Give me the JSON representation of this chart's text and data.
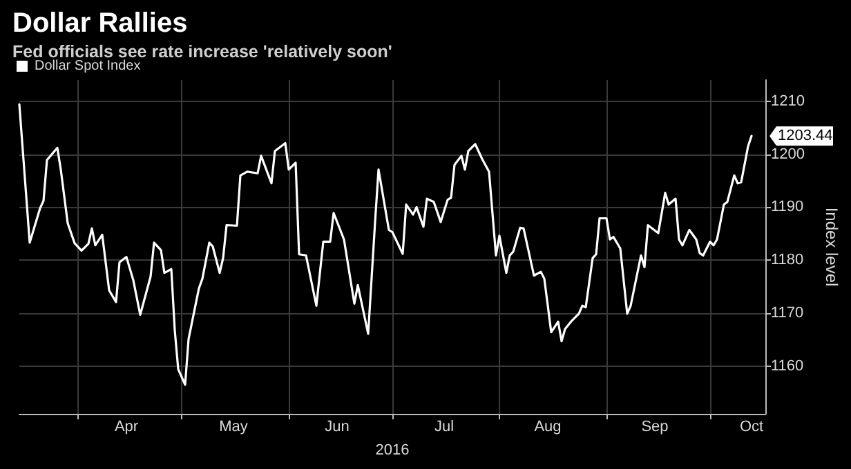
{
  "chart_data": {
    "type": "line",
    "title": "Dollar Rallies",
    "subtitle": "Fed officials see rate increase 'relatively soon'",
    "xlabel": "2016",
    "ylabel": "Index level",
    "annotations": [
      {
        "text": "1203.44",
        "x": "2016-10-13",
        "y": 1203.44
      }
    ],
    "x": [
      "2016-03-15",
      "2016-03-18",
      "2016-03-21",
      "2016-03-22",
      "2016-03-23",
      "2016-03-26",
      "2016-03-27",
      "2016-03-29",
      "2016-03-31",
      "2016-04-02",
      "2016-04-04",
      "2016-04-05",
      "2016-04-06",
      "2016-04-08",
      "2016-04-10",
      "2016-04-12",
      "2016-04-13",
      "2016-04-15",
      "2016-04-17",
      "2016-04-19",
      "2016-04-22",
      "2016-04-23",
      "2016-04-25",
      "2016-04-26",
      "2016-04-28",
      "2016-04-29",
      "2016-04-30",
      "2016-05-02",
      "2016-05-03",
      "2016-05-06",
      "2016-05-07",
      "2016-05-09",
      "2016-05-10",
      "2016-05-12",
      "2016-05-13",
      "2016-05-14",
      "2016-05-17",
      "2016-05-18",
      "2016-05-20",
      "2016-05-23",
      "2016-05-24",
      "2016-05-27",
      "2016-05-28",
      "2016-05-31",
      "2016-06-01",
      "2016-06-03",
      "2016-06-04",
      "2016-06-06",
      "2016-06-09",
      "2016-06-11",
      "2016-06-13",
      "2016-06-14",
      "2016-06-17",
      "2016-06-20",
      "2016-06-21",
      "2016-06-24",
      "2016-06-26",
      "2016-06-27",
      "2016-06-30",
      "2016-07-01",
      "2016-07-04",
      "2016-07-05",
      "2016-07-07",
      "2016-07-08",
      "2016-07-10",
      "2016-07-11",
      "2016-07-13",
      "2016-07-15",
      "2016-07-17",
      "2016-07-18",
      "2016-07-19",
      "2016-07-21",
      "2016-07-22",
      "2016-07-23",
      "2016-07-25",
      "2016-07-27",
      "2016-07-29",
      "2016-07-31",
      "2016-08-01",
      "2016-08-03",
      "2016-08-04",
      "2016-08-05",
      "2016-08-07",
      "2016-08-08",
      "2016-08-11",
      "2016-08-13",
      "2016-08-14",
      "2016-08-16",
      "2016-08-18",
      "2016-08-19",
      "2016-08-20",
      "2016-08-22",
      "2016-08-24",
      "2016-08-25",
      "2016-08-26",
      "2016-08-28",
      "2016-08-29",
      "2016-08-30",
      "2016-09-01",
      "2016-09-02",
      "2016-09-03",
      "2016-09-05",
      "2016-09-07",
      "2016-09-08",
      "2016-09-11",
      "2016-09-12",
      "2016-09-13",
      "2016-09-16",
      "2016-09-18",
      "2016-09-19",
      "2016-09-21",
      "2016-09-22",
      "2016-09-23",
      "2016-09-25",
      "2016-09-27",
      "2016-09-28",
      "2016-09-29",
      "2016-10-01",
      "2016-10-02",
      "2016-10-03",
      "2016-10-05",
      "2016-10-06",
      "2016-10-08",
      "2016-10-09",
      "2016-10-10",
      "2016-10-12",
      "2016-10-13"
    ],
    "series": [
      {
        "name": "Dollar Spot Index",
        "color": "#ffffff",
        "values": [
          1209.4,
          1183.3,
          1189.8,
          1191.2,
          1198.9,
          1201.2,
          1197.1,
          1187.0,
          1183.2,
          1181.8,
          1183.1,
          1186.0,
          1182.8,
          1184.8,
          1174.3,
          1172.1,
          1179.6,
          1180.6,
          1176.2,
          1169.7,
          1176.9,
          1183.3,
          1181.9,
          1177.6,
          1178.3,
          1166.8,
          1159.4,
          1156.5,
          1165.1,
          1174.7,
          1176.5,
          1183.3,
          1182.6,
          1177.6,
          1180.4,
          1186.6,
          1186.5,
          1196.0,
          1196.7,
          1196.4,
          1199.7,
          1194.5,
          1200.6,
          1202.1,
          1197.1,
          1198.4,
          1181.1,
          1180.9,
          1171.4,
          1183.5,
          1183.5,
          1188.9,
          1183.9,
          1171.8,
          1175.3,
          1166.1,
          1187.2,
          1197.1,
          1185.7,
          1185.3,
          1181.2,
          1190.5,
          1188.6,
          1190.0,
          1186.3,
          1191.6,
          1191.0,
          1187.2,
          1191.4,
          1191.8,
          1198.0,
          1199.7,
          1197.1,
          1200.6,
          1201.9,
          1199.1,
          1196.7,
          1180.9,
          1184.6,
          1177.6,
          1180.9,
          1181.6,
          1186.1,
          1186.0,
          1177.1,
          1177.8,
          1176.5,
          1166.4,
          1168.4,
          1164.7,
          1167.0,
          1168.6,
          1169.9,
          1171.4,
          1171.1,
          1180.4,
          1181.1,
          1187.9,
          1187.9,
          1183.9,
          1184.4,
          1182.2,
          1169.9,
          1171.4,
          1180.9,
          1178.7,
          1186.6,
          1185.1,
          1192.7,
          1190.5,
          1191.6,
          1183.9,
          1182.8,
          1185.7,
          1183.9,
          1181.3,
          1180.9,
          1183.5,
          1182.8,
          1183.9,
          1190.5,
          1191.0,
          1196.0,
          1194.5,
          1194.7,
          1201.5,
          1203.44
        ]
      }
    ],
    "xlim": [
      "2016-03-15",
      "2016-10-17"
    ],
    "xticks": [
      {
        "value": "2016-04-01",
        "label": null
      },
      {
        "value": "2016-04-15",
        "label": "Apr"
      },
      {
        "value": "2016-05-01",
        "label": null
      },
      {
        "value": "2016-05-16",
        "label": "May"
      },
      {
        "value": "2016-06-01",
        "label": null
      },
      {
        "value": "2016-06-15",
        "label": "Jun"
      },
      {
        "value": "2016-07-01",
        "label": null
      },
      {
        "value": "2016-07-16",
        "label": "Jul"
      },
      {
        "value": "2016-08-01",
        "label": null
      },
      {
        "value": "2016-08-15",
        "label": "Aug"
      },
      {
        "value": "2016-09-01",
        "label": null
      },
      {
        "value": "2016-09-15",
        "label": "Sep"
      },
      {
        "value": "2016-10-01",
        "label": null
      },
      {
        "value": "2016-10-13",
        "label": "Oct"
      }
    ],
    "ylim": [
      1151,
      1214
    ],
    "yticks": [
      1160,
      1170,
      1180,
      1190,
      1200,
      1210
    ],
    "grid": true,
    "legend": "top left",
    "marker": "none",
    "line_style": "solid"
  }
}
